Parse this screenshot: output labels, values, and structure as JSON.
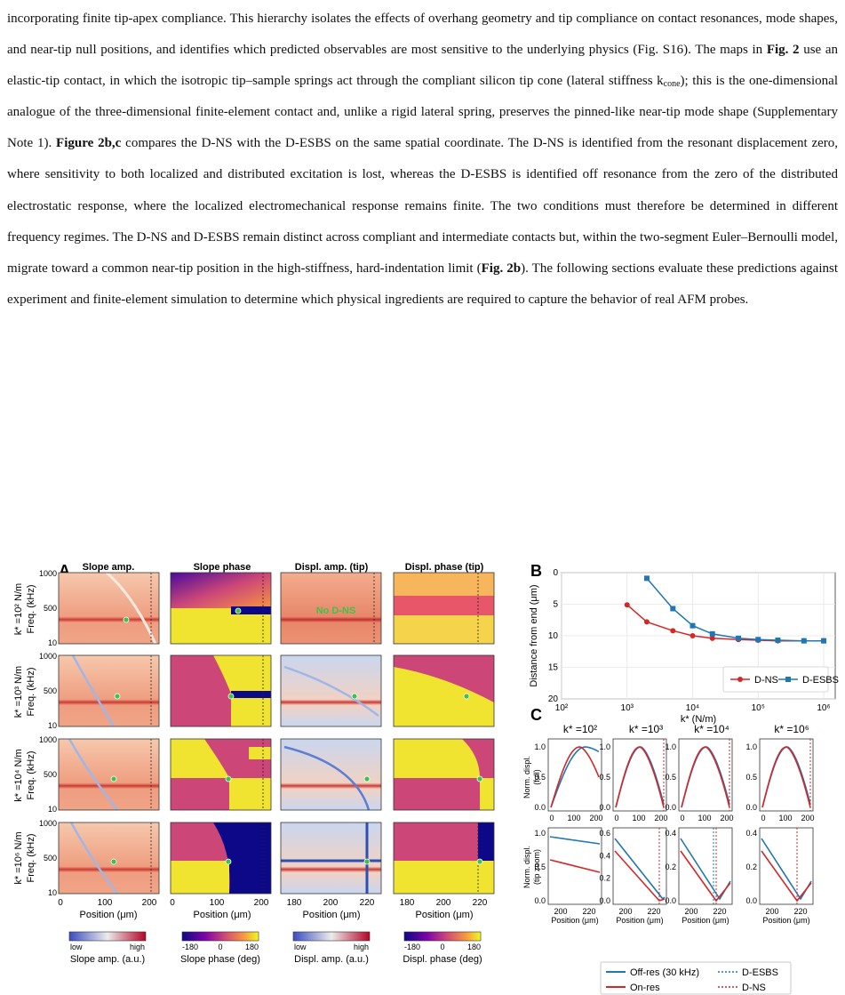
{
  "paragraph": {
    "p1": "incorporating finite tip-apex compliance. This hierarchy isolates the effects of overhang geometry and tip compliance on contact resonances, mode shapes, and near-tip null positions, and identifies which predicted observables are most sensitive to the underlying physics (Fig. S16). The maps in ",
    "b1": "Fig. 2",
    "p2": " use an elastic-tip contact, in which the isotropic tip–sample springs act through the compliant silicon tip cone (lateral stiffness k",
    "sub1": "cone",
    "p3": "); this is the one-dimensional analogue of the three-dimensional finite-element contact and, unlike a rigid lateral spring, preserves the pinned-like near-tip mode shape (Supplementary Note 1). ",
    "b2": "Figure 2b,c",
    "p4": " compares the D-NS with the D-ESBS on the same spatial coordinate. The D-NS is identified from the resonant displacement zero, where sensitivity to both localized and distributed excitation is lost, whereas the D-ESBS is identified off resonance from the zero of the distributed electrostatic response, where the localized electromechanical response remains finite. The two conditions must therefore be determined in different frequency regimes. The D-NS and D-ESBS remain distinct across compliant and intermediate contacts but, within the two-segment Euler–Bernoulli model, migrate toward a common near-tip position in the high-stiffness, hard-indentation limit (",
    "b3": "Fig. 2b",
    "p5": "). The following sections evaluate these predictions against experiment and finite-element simulation to determine which physical ingredients are required to capture the behavior of real AFM probes."
  },
  "panel_a": {
    "letter": "A",
    "col_titles": [
      "Slope amp.",
      "Slope phase",
      "Displ. amp. (tip)",
      "Displ. phase (tip)"
    ],
    "row_labels": [
      "k* =10² N/m",
      "k* =10³ N/m",
      "k* =10⁴ N/m",
      "k* =10⁶ N/m"
    ],
    "freq_label": "Freq. (kHz)",
    "y_ticks": [
      "1000",
      "500",
      "10"
    ],
    "x_ticks_full": [
      "0",
      "100",
      "200"
    ],
    "x_ticks_zoom": [
      "180",
      "200",
      "220"
    ],
    "xlabel": "Position (μm)",
    "annotation": "No D-NS",
    "colorbars": [
      {
        "min": "low",
        "mid": "",
        "max": "high",
        "label": "Slope amp. (a.u.)"
      },
      {
        "min": "-180",
        "mid": "0",
        "max": "180",
        "label": "Slope phase (deg)"
      },
      {
        "min": "low",
        "mid": "",
        "max": "high",
        "label": "Displ. amp. (a.u.)"
      },
      {
        "min": "-180",
        "mid": "0",
        "max": "180",
        "label": "Displ. phase (deg)"
      }
    ]
  },
  "panel_b": {
    "letter": "B",
    "ylabel": "Distance from end (μm)",
    "xlabel": "k* (N/m)",
    "y_ticks": [
      "0",
      "5",
      "10",
      "15",
      "20"
    ],
    "x_ticks": [
      "10²",
      "10³",
      "10⁴",
      "10⁵",
      "10⁶"
    ]
  },
  "panel_c": {
    "letter": "C",
    "titles": [
      "k* =10²",
      "k* =10³",
      "k* =10⁴",
      "k* =10⁶"
    ],
    "ylabel_top": [
      "Norm. displ.",
      "(full)"
    ],
    "ylabel_bottom": [
      "Norm. displ.",
      "(tip zoom)"
    ],
    "top_y_ticks": [
      "0.0",
      "0.5",
      "1.0"
    ],
    "top_x_ticks": [
      "0",
      "100",
      "200"
    ],
    "bottom_x_ticks": [
      "200",
      "220"
    ],
    "bottom_y_ticks": [
      [
        "0.0",
        "0.5",
        "1.0"
      ],
      [
        "0.0",
        "0.2",
        "0.4",
        "0.6"
      ],
      [
        "0.0",
        "0.2",
        "0.4"
      ],
      [
        "0.0",
        "0.2",
        "0.4"
      ]
    ],
    "xlabel": "Position (μm)",
    "legend": {
      "off_res": "Off-res (30 kHz)",
      "on_res": "On-res",
      "desbs": "D-ESBS",
      "dns": "D-NS"
    }
  },
  "chart_data": {
    "type": "line",
    "title": "",
    "xlabel": "k* (N/m)",
    "ylabel": "Distance from end (μm)",
    "x_scale": "log",
    "xlim": [
      100,
      1500000
    ],
    "ylim": [
      20,
      0
    ],
    "grid": true,
    "legend_position": "bottom-right",
    "series": [
      {
        "name": "D-NS",
        "color": "#d62728",
        "marker": "circle",
        "x": [
          1000,
          2000,
          5000,
          10000,
          20000,
          50000,
          100000,
          200000,
          500000,
          1000000
        ],
        "y": [
          5.1,
          7.8,
          9.2,
          10.0,
          10.4,
          10.6,
          10.7,
          10.8,
          10.8,
          10.8
        ]
      },
      {
        "name": "D-ESBS",
        "color": "#1f77b4",
        "marker": "square",
        "x": [
          2000,
          5000,
          10000,
          20000,
          50000,
          100000,
          200000,
          500000,
          1000000
        ],
        "y": [
          0.9,
          5.7,
          8.4,
          9.7,
          10.4,
          10.6,
          10.7,
          10.8,
          10.8
        ]
      }
    ]
  }
}
